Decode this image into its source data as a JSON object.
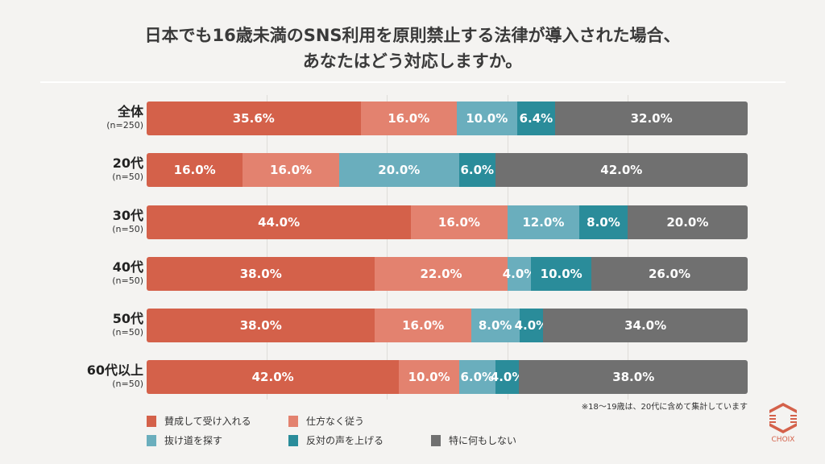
{
  "title_line1": "日本でも16歳未満のSNS利用を原則禁止する法律が導入された場合、",
  "title_line2": "あなたはどう対応しますか。",
  "note": "※18〜19歳は、20代に含めて集計しています",
  "logo_text": "CHOIX",
  "chart_data": {
    "type": "bar",
    "orientation": "horizontal-stacked-100",
    "categories": [
      "全体",
      "20代",
      "30代",
      "40代",
      "50代",
      "60代以上"
    ],
    "sample_sizes": [
      "(n=250)",
      "(n=50)",
      "(n=50)",
      "(n=50)",
      "(n=50)",
      "(n=50)"
    ],
    "xlim": [
      0,
      100
    ],
    "grid": true,
    "legend_position": "bottom",
    "series": [
      {
        "name": "賛成して受け入れる",
        "color": "#d4614a",
        "values": [
          35.6,
          16.0,
          44.0,
          38.0,
          38.0,
          42.0
        ]
      },
      {
        "name": "仕方なく従う",
        "color": "#e3826f",
        "values": [
          16.0,
          16.0,
          16.0,
          22.0,
          16.0,
          10.0
        ]
      },
      {
        "name": "抜け道を探す",
        "color": "#6aaebd",
        "values": [
          10.0,
          20.0,
          12.0,
          4.0,
          8.0,
          6.0
        ]
      },
      {
        "name": "反対の声を上げる",
        "color": "#2a8c9a",
        "values": [
          6.4,
          6.0,
          8.0,
          10.0,
          4.0,
          4.0
        ]
      },
      {
        "name": "特に何もしない",
        "color": "#707070",
        "values": [
          32.0,
          42.0,
          20.0,
          26.0,
          34.0,
          38.0
        ]
      }
    ]
  }
}
